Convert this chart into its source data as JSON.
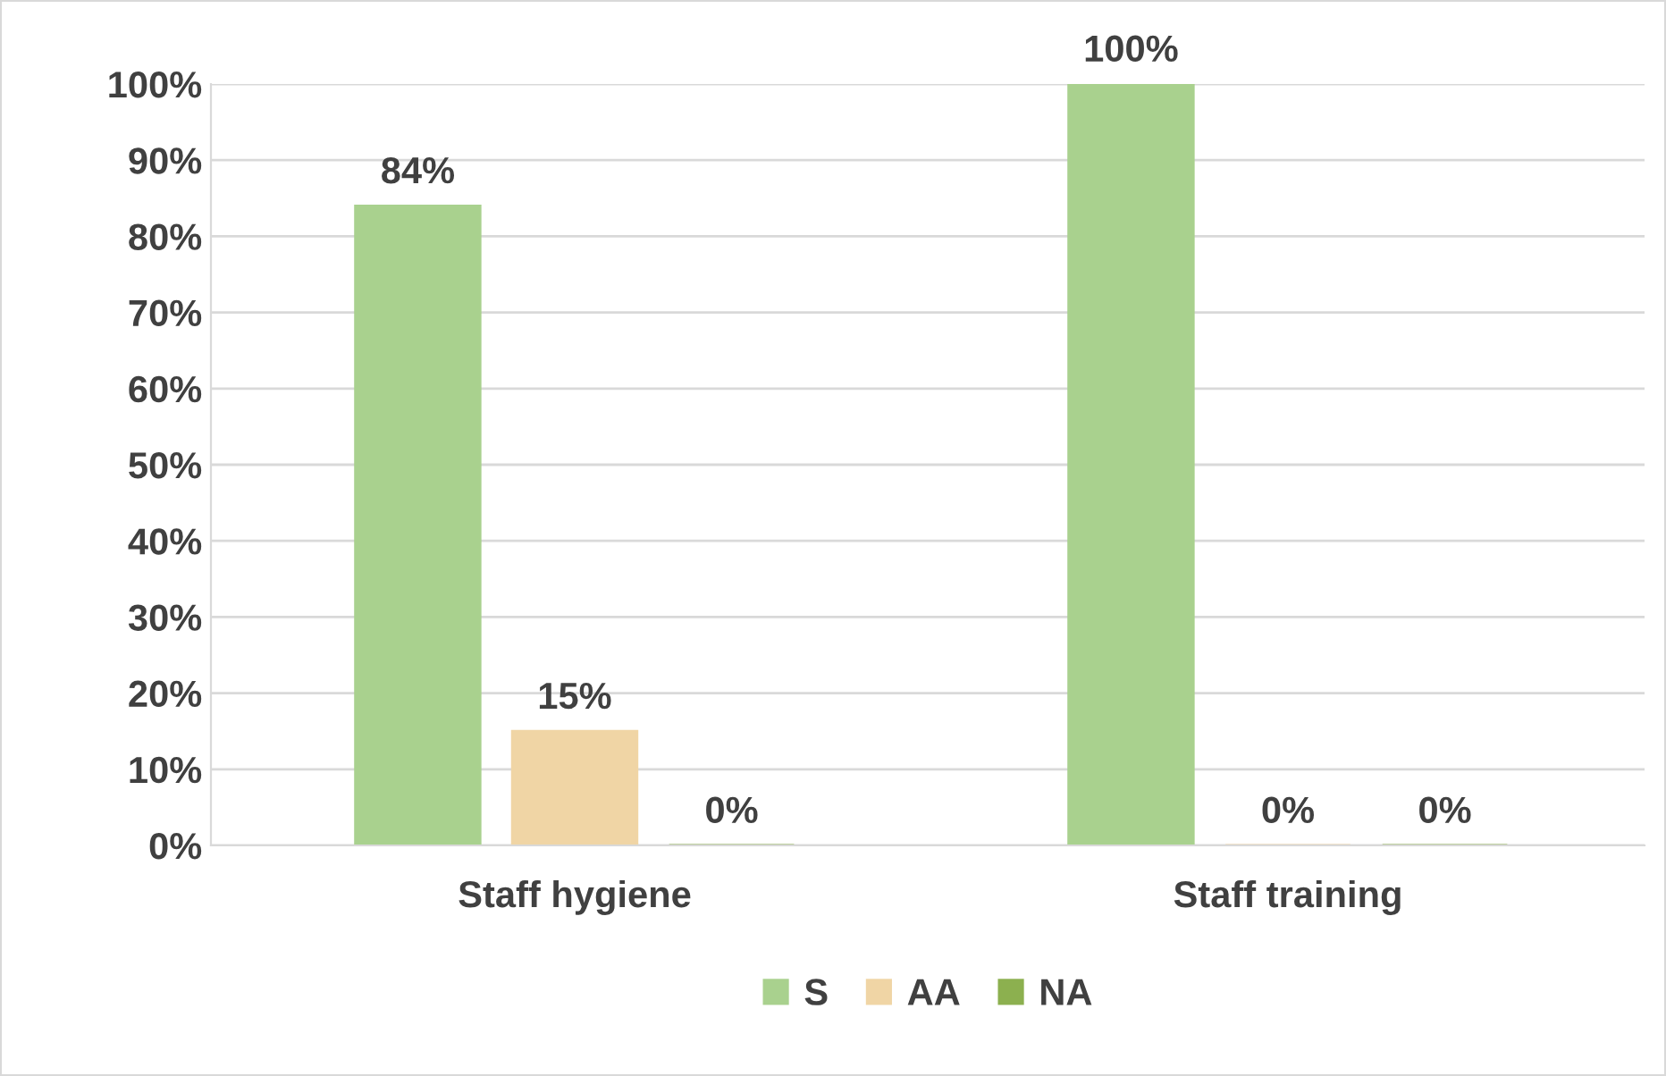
{
  "chart_data": {
    "type": "bar",
    "categories": [
      "Staff hygiene",
      "Staff training"
    ],
    "series": [
      {
        "name": "S",
        "color": "#a9d18e",
        "values": [
          84,
          100
        ],
        "value_labels": [
          "84%",
          "100%"
        ]
      },
      {
        "name": "AA",
        "color": "#f0d5a5",
        "values": [
          15,
          0
        ],
        "value_labels": [
          "15%",
          "0%"
        ]
      },
      {
        "name": "NA",
        "color": "#8cb04f",
        "values": [
          0,
          0
        ],
        "value_labels": [
          "0%",
          "0%"
        ]
      }
    ],
    "ylim": [
      0,
      100
    ],
    "yticks": [
      {
        "value": 0,
        "label": "0%"
      },
      {
        "value": 10,
        "label": "10%"
      },
      {
        "value": 20,
        "label": "20%"
      },
      {
        "value": 30,
        "label": "30%"
      },
      {
        "value": 40,
        "label": "40%"
      },
      {
        "value": 50,
        "label": "50%"
      },
      {
        "value": 60,
        "label": "60%"
      },
      {
        "value": 70,
        "label": "70%"
      },
      {
        "value": 80,
        "label": "80%"
      },
      {
        "value": 90,
        "label": "90%"
      },
      {
        "value": 100,
        "label": "100%"
      }
    ],
    "grid": "y",
    "legend": "bottom"
  }
}
